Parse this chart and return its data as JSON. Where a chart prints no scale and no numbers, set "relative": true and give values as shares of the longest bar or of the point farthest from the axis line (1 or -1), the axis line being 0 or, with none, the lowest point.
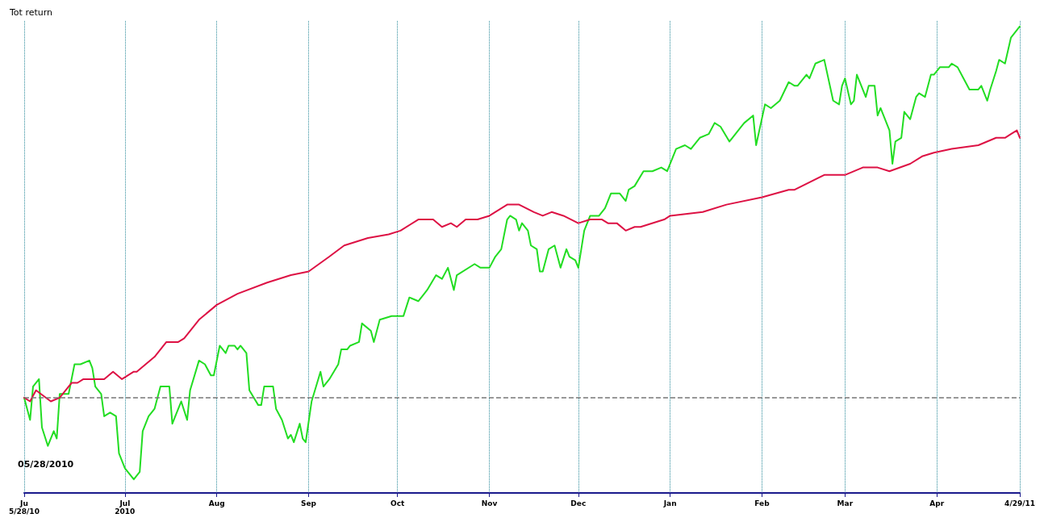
{
  "chart_data": {
    "type": "line",
    "relative": true,
    "ylabel": "Tot return",
    "annotations": [
      "05/28/2010"
    ],
    "grid": "x",
    "marker": "none",
    "line_style": "solid",
    "xlim": [
      "2010-05-28",
      "2011-04-29"
    ],
    "xticks": [
      {
        "value": "2010-05-28",
        "label": "Ju\n5/28/10"
      },
      {
        "value": "2010-07-01",
        "label": "Jul\n2010"
      },
      {
        "value": "2010-08-01",
        "label": "Aug"
      },
      {
        "value": "2010-09-01",
        "label": "Sep"
      },
      {
        "value": "2010-10-01",
        "label": "Oct"
      },
      {
        "value": "2010-11-01",
        "label": "Nov"
      },
      {
        "value": "2010-12-01",
        "label": "Dec"
      },
      {
        "value": "2011-01-01",
        "label": "Jan"
      },
      {
        "value": "2011-02-01",
        "label": "Feb"
      },
      {
        "value": "2011-03-01",
        "label": "Mar"
      },
      {
        "value": "2011-04-01",
        "label": "Apr"
      },
      {
        "value": "2011-04-29",
        "label": "4/29/11"
      }
    ],
    "ref_lines": [
      {
        "axis": "y",
        "value": 0,
        "color": "#777777",
        "line_style": "dashed"
      }
    ],
    "series": [
      {
        "color": "#22dd22",
        "x": [
          "2010-05-28",
          "2010-05-30",
          "2010-05-31",
          "2010-06-02",
          "2010-06-03",
          "2010-06-05",
          "2010-06-07",
          "2010-06-08",
          "2010-06-09",
          "2010-06-12",
          "2010-06-14",
          "2010-06-16",
          "2010-06-19",
          "2010-06-20",
          "2010-06-21",
          "2010-06-23",
          "2010-06-24",
          "2010-06-26",
          "2010-06-28",
          "2010-06-29",
          "2010-07-01",
          "2010-07-04",
          "2010-07-06",
          "2010-07-07",
          "2010-07-09",
          "2010-07-11",
          "2010-07-13",
          "2010-07-16",
          "2010-07-17",
          "2010-07-20",
          "2010-07-22",
          "2010-07-23",
          "2010-07-26",
          "2010-07-28",
          "2010-07-30",
          "2010-07-31",
          "2010-08-02",
          "2010-08-04",
          "2010-08-05",
          "2010-08-07",
          "2010-08-08",
          "2010-08-09",
          "2010-08-11",
          "2010-08-12",
          "2010-08-15",
          "2010-08-16",
          "2010-08-17",
          "2010-08-20",
          "2010-08-21",
          "2010-08-23",
          "2010-08-25",
          "2010-08-26",
          "2010-08-27",
          "2010-08-29",
          "2010-08-30",
          "2010-08-31",
          "2010-09-02",
          "2010-09-05",
          "2010-09-06",
          "2010-09-08",
          "2010-09-11",
          "2010-09-12",
          "2010-09-14",
          "2010-09-15",
          "2010-09-18",
          "2010-09-19",
          "2010-09-22",
          "2010-09-23",
          "2010-09-25",
          "2010-09-29",
          "2010-10-03",
          "2010-10-05",
          "2010-10-08",
          "2010-10-10",
          "2010-10-11",
          "2010-10-14",
          "2010-10-16",
          "2010-10-18",
          "2010-10-20",
          "2010-10-21",
          "2010-10-27",
          "2010-10-29",
          "2010-11-01",
          "2010-11-03",
          "2010-11-05",
          "2010-11-07",
          "2010-11-08",
          "2010-11-10",
          "2010-11-11",
          "2010-11-12",
          "2010-11-14",
          "2010-11-15",
          "2010-11-17",
          "2010-11-18",
          "2010-11-19",
          "2010-11-21",
          "2010-11-23",
          "2010-11-25",
          "2010-11-27",
          "2010-11-28",
          "2010-11-30",
          "2010-12-01",
          "2010-12-03",
          "2010-12-05",
          "2010-12-08",
          "2010-12-10",
          "2010-12-12",
          "2010-12-15",
          "2010-12-17",
          "2010-12-18",
          "2010-12-20",
          "2010-12-23",
          "2010-12-26",
          "2010-12-29",
          "2010-12-31",
          "2011-01-03",
          "2011-01-06",
          "2011-01-08",
          "2011-01-11",
          "2011-01-14",
          "2011-01-16",
          "2011-01-18",
          "2011-01-21",
          "2011-01-22",
          "2011-01-25",
          "2011-01-26",
          "2011-01-29",
          "2011-01-30",
          "2011-02-02",
          "2011-02-04",
          "2011-02-07",
          "2011-02-10",
          "2011-02-12",
          "2011-02-13",
          "2011-02-16",
          "2011-02-17",
          "2011-02-19",
          "2011-02-22",
          "2011-02-25",
          "2011-02-27",
          "2011-02-28",
          "2011-03-01",
          "2011-03-03",
          "2011-03-04",
          "2011-03-05",
          "2011-03-08",
          "2011-03-09",
          "2011-03-11",
          "2011-03-12",
          "2011-03-13",
          "2011-03-16",
          "2011-03-17",
          "2011-03-18",
          "2011-03-20",
          "2011-03-21",
          "2011-03-23",
          "2011-03-25",
          "2011-03-26",
          "2011-03-28",
          "2011-03-30",
          "2011-03-31",
          "2011-04-02",
          "2011-04-05",
          "2011-04-06",
          "2011-04-08",
          "2011-04-10",
          "2011-04-12",
          "2011-04-15",
          "2011-04-16",
          "2011-04-18",
          "2011-04-19",
          "2011-04-21",
          "2011-04-22",
          "2011-04-24",
          "2011-04-26",
          "2011-04-29"
        ],
        "values": [
          0.0,
          -0.06,
          0.03,
          0.05,
          -0.08,
          -0.13,
          -0.09,
          -0.11,
          0.01,
          0.01,
          0.09,
          0.09,
          0.1,
          0.08,
          0.03,
          0.01,
          -0.05,
          -0.04,
          -0.05,
          -0.15,
          -0.19,
          -0.22,
          -0.2,
          -0.09,
          -0.05,
          -0.03,
          0.03,
          0.03,
          -0.07,
          -0.01,
          -0.06,
          0.02,
          0.1,
          0.09,
          0.06,
          0.06,
          0.14,
          0.12,
          0.14,
          0.14,
          0.13,
          0.14,
          0.12,
          0.02,
          -0.02,
          -0.02,
          0.03,
          0.03,
          -0.03,
          -0.06,
          -0.11,
          -0.1,
          -0.12,
          -0.07,
          -0.11,
          -0.12,
          -0.01,
          0.07,
          0.03,
          0.05,
          0.09,
          0.13,
          0.13,
          0.14,
          0.15,
          0.2,
          0.18,
          0.15,
          0.21,
          0.22,
          0.22,
          0.27,
          0.26,
          0.28,
          0.29,
          0.33,
          0.32,
          0.35,
          0.29,
          0.33,
          0.36,
          0.35,
          0.35,
          0.38,
          0.4,
          0.48,
          0.49,
          0.48,
          0.45,
          0.47,
          0.45,
          0.41,
          0.4,
          0.34,
          0.34,
          0.4,
          0.41,
          0.35,
          0.4,
          0.38,
          0.37,
          0.35,
          0.45,
          0.49,
          0.49,
          0.51,
          0.55,
          0.55,
          0.53,
          0.56,
          0.57,
          0.61,
          0.61,
          0.62,
          0.61,
          0.67,
          0.68,
          0.67,
          0.7,
          0.71,
          0.74,
          0.73,
          0.69,
          0.7,
          0.73,
          0.74,
          0.76,
          0.68,
          0.79,
          0.78,
          0.8,
          0.85,
          0.84,
          0.84,
          0.87,
          0.86,
          0.9,
          0.91,
          0.8,
          0.79,
          0.84,
          0.86,
          0.79,
          0.8,
          0.87,
          0.81,
          0.84,
          0.84,
          0.76,
          0.78,
          0.72,
          0.63,
          0.69,
          0.7,
          0.77,
          0.75,
          0.81,
          0.82,
          0.81,
          0.87,
          0.87,
          0.89,
          0.89,
          0.9,
          0.89,
          0.86,
          0.83,
          0.83,
          0.84,
          0.8,
          0.83,
          0.88,
          0.91,
          0.9,
          0.97,
          1.0
        ]
      },
      {
        "color": "#dd1144",
        "x": [
          "2010-05-28",
          "2010-05-30",
          "2010-06-01",
          "2010-06-06",
          "2010-06-09",
          "2010-06-13",
          "2010-06-15",
          "2010-06-17",
          "2010-06-21",
          "2010-06-24",
          "2010-06-27",
          "2010-06-30",
          "2010-07-04",
          "2010-07-05",
          "2010-07-11",
          "2010-07-15",
          "2010-07-19",
          "2010-07-21",
          "2010-07-26",
          "2010-08-01",
          "2010-08-08",
          "2010-08-18",
          "2010-08-26",
          "2010-09-01",
          "2010-09-08",
          "2010-09-13",
          "2010-09-21",
          "2010-09-28",
          "2010-10-02",
          "2010-10-08",
          "2010-10-13",
          "2010-10-16",
          "2010-10-19",
          "2010-10-21",
          "2010-10-24",
          "2010-10-28",
          "2010-11-01",
          "2010-11-07",
          "2010-11-11",
          "2010-11-16",
          "2010-11-19",
          "2010-11-22",
          "2010-11-26",
          "2010-12-01",
          "2010-12-05",
          "2010-12-09",
          "2010-12-11",
          "2010-12-14",
          "2010-12-17",
          "2010-12-20",
          "2010-12-22",
          "2010-12-30",
          "2011-01-01",
          "2011-01-12",
          "2011-01-20",
          "2011-02-01",
          "2011-02-10",
          "2011-02-12",
          "2011-02-22",
          "2011-03-01",
          "2011-03-07",
          "2011-03-12",
          "2011-03-16",
          "2011-03-23",
          "2011-03-27",
          "2011-03-31",
          "2011-04-06",
          "2011-04-15",
          "2011-04-21",
          "2011-04-24",
          "2011-04-26",
          "2011-04-28",
          "2011-04-29"
        ],
        "values": [
          0.0,
          -0.01,
          0.02,
          -0.01,
          0.0,
          0.04,
          0.04,
          0.05,
          0.05,
          0.05,
          0.07,
          0.05,
          0.07,
          0.07,
          0.11,
          0.15,
          0.15,
          0.16,
          0.21,
          0.25,
          0.28,
          0.31,
          0.33,
          0.34,
          0.38,
          0.41,
          0.43,
          0.44,
          0.45,
          0.48,
          0.48,
          0.46,
          0.47,
          0.46,
          0.48,
          0.48,
          0.49,
          0.52,
          0.52,
          0.5,
          0.49,
          0.5,
          0.49,
          0.47,
          0.48,
          0.48,
          0.47,
          0.47,
          0.45,
          0.46,
          0.46,
          0.48,
          0.49,
          0.5,
          0.52,
          0.54,
          0.56,
          0.56,
          0.6,
          0.6,
          0.62,
          0.62,
          0.61,
          0.63,
          0.65,
          0.66,
          0.67,
          0.68,
          0.7,
          0.7,
          0.71,
          0.72,
          0.7
        ]
      }
    ]
  }
}
